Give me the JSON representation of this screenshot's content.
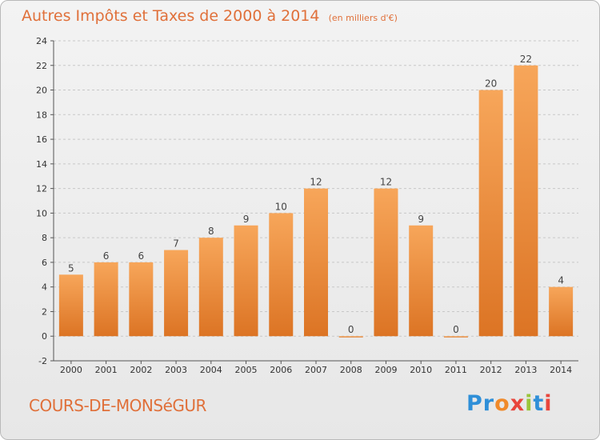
{
  "header": {
    "title": "Autres Impôts et Taxes de 2000 à 2014",
    "subtitle": "(en milliers d'€)"
  },
  "footer": {
    "commune": "COURS-DE-MONSéGUR",
    "logo_letters": [
      "P",
      "r",
      "o",
      "x",
      "i",
      "t",
      "i"
    ],
    "logo_colors": [
      "#2f8fd8",
      "#2f8fd8",
      "#f08a2a",
      "#e8453c",
      "#9ac53a",
      "#2f8fd8",
      "#e8453c"
    ]
  },
  "colors": {
    "title": "#e0703a",
    "bar_light": "#f7a65a",
    "bar_dark": "#dc7424",
    "grid": "#c8c8c8"
  },
  "chart_data": {
    "type": "bar",
    "title": "Autres Impôts et Taxes de 2000 à 2014",
    "subtitle": "(en milliers d'€)",
    "categories": [
      "2000",
      "2001",
      "2002",
      "2003",
      "2004",
      "2005",
      "2006",
      "2007",
      "2008",
      "2009",
      "2010",
      "2011",
      "2012",
      "2013",
      "2014"
    ],
    "values": [
      5,
      6,
      6,
      7,
      8,
      9,
      10,
      12,
      0,
      12,
      9,
      0,
      20,
      22,
      4
    ],
    "ylim": [
      -2,
      24
    ],
    "yticks": [
      -2,
      0,
      2,
      4,
      6,
      8,
      10,
      12,
      14,
      16,
      18,
      20,
      22,
      24
    ],
    "grid": "horizontal dashed",
    "data_labels": true
  }
}
